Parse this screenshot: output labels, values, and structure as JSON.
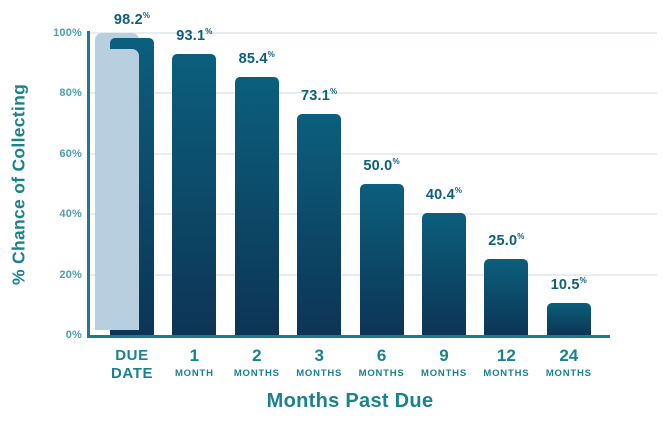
{
  "chart_data": {
    "type": "bar",
    "title": "",
    "xlabel": "Months Past Due",
    "ylabel": "% Chance of Collecting",
    "ylim": [
      0,
      100
    ],
    "yticks": [
      0,
      20,
      40,
      60,
      80,
      100
    ],
    "ytick_suffix": "%",
    "grid": "horizontal",
    "legend": "none",
    "categories": [
      "DUE DATE",
      "1 MONTH",
      "2 MONTHS",
      "3 MONTHS",
      "6 MONTHS",
      "9 MONTHS",
      "12 MONTHS",
      "24 MONTHS"
    ],
    "x_tick_lines": [
      {
        "line1": "DUE",
        "line2": "DATE",
        "emphasized": true
      },
      {
        "line1": "1",
        "line2": "MONTH",
        "emphasized": false
      },
      {
        "line1": "2",
        "line2": "MONTHS",
        "emphasized": false
      },
      {
        "line1": "3",
        "line2": "MONTHS",
        "emphasized": false
      },
      {
        "line1": "6",
        "line2": "MONTHS",
        "emphasized": false
      },
      {
        "line1": "9",
        "line2": "MONTHS",
        "emphasized": false
      },
      {
        "line1": "12",
        "line2": "MONTHS",
        "emphasized": false
      },
      {
        "line1": "24",
        "line2": "MONTHS",
        "emphasized": false
      }
    ],
    "values": [
      98.2,
      93.1,
      85.4,
      73.1,
      50.0,
      40.4,
      25.0,
      10.5
    ],
    "value_labels": [
      "98.2",
      "93.1",
      "85.4",
      "73.1",
      "50.0",
      "40.4",
      "25.0",
      "10.5"
    ],
    "value_suffix": "%"
  },
  "colors": {
    "bar_gradient_top": "#0B5F7D",
    "bar_gradient_bottom": "#0D3455",
    "bar_shadow": "#B7CFDE",
    "axis_line": "#20798D",
    "gridline": "#E7EDF3",
    "ytick_label": "#4D9FAC",
    "value_label": "#0D5F80",
    "category_label": "#19828F",
    "axis_title": "#19828F",
    "background": "#FFFFFF"
  }
}
